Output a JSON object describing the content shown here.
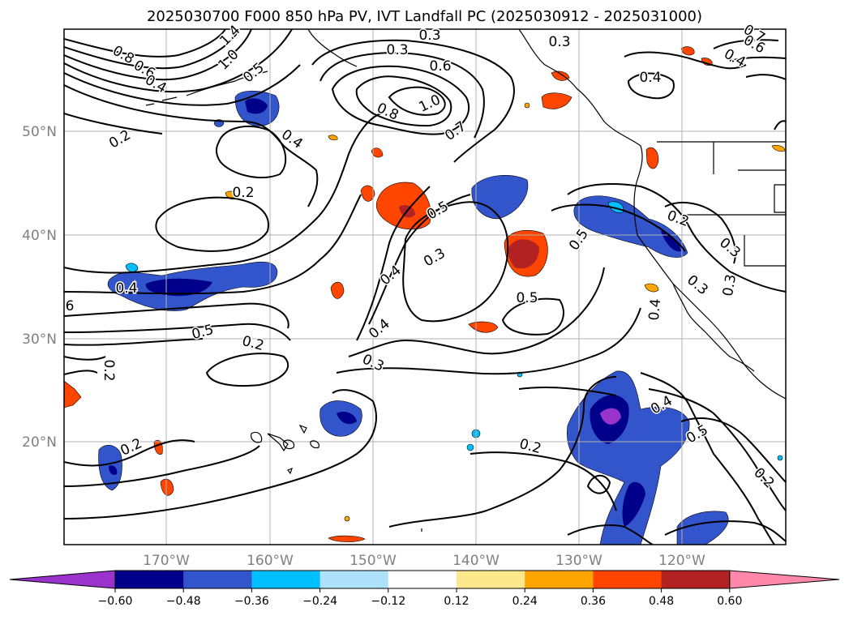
{
  "title": "2025030700 F000 850 hPa PV, IVT Landfall PC (2025030912 - 2025031000)",
  "lat_ticks": [
    "50°N",
    "40°N",
    "30°N",
    "20°N"
  ],
  "lon_ticks": [
    "170°W",
    "160°W",
    "150°W",
    "140°W",
    "130°W",
    "120°W"
  ],
  "colorbar": {
    "tick_labels": [
      "−0.60",
      "−0.48",
      "−0.36",
      "−0.24",
      "−0.12",
      "0.12",
      "0.24",
      "0.36",
      "0.48",
      "0.60"
    ],
    "colors": [
      "#9933cc",
      "#00008b",
      "#3355cc",
      "#00bfff",
      "#aee2fa",
      "#ffffff",
      "#fde98b",
      "#ffa500",
      "#ff4500",
      "#b22222",
      "#ff88aa"
    ]
  },
  "contour_labels": [
    {
      "text": "0.3"
    },
    {
      "text": "0.3"
    },
    {
      "text": "0.3"
    },
    {
      "text": "0.6"
    },
    {
      "text": "0.7"
    },
    {
      "text": "0.6"
    },
    {
      "text": "0.4"
    },
    {
      "text": "1.4"
    },
    {
      "text": "1.0"
    },
    {
      "text": "0.8"
    },
    {
      "text": "0.6"
    },
    {
      "text": "0.4"
    },
    {
      "text": "0.5"
    },
    {
      "text": "0.2"
    },
    {
      "text": "0.4"
    },
    {
      "text": "0.8"
    },
    {
      "text": "1.0"
    },
    {
      "text": "0.7"
    },
    {
      "text": "0.4"
    },
    {
      "text": "0.2"
    },
    {
      "text": "0.5"
    },
    {
      "text": "0.3"
    },
    {
      "text": "0.4"
    },
    {
      "text": "0.5"
    },
    {
      "text": "0.2"
    },
    {
      "text": "0.3"
    },
    {
      "text": "0.3"
    },
    {
      "text": "0.5"
    },
    {
      "text": "0.4"
    },
    {
      "text": "0.3"
    },
    {
      "text": "0.4"
    },
    {
      "text": "6"
    },
    {
      "text": "0.5"
    },
    {
      "text": "0.2"
    },
    {
      "text": "0.3"
    },
    {
      "text": "0.2"
    },
    {
      "text": "0.4"
    },
    {
      "text": "0.2"
    },
    {
      "text": "0.4"
    },
    {
      "text": "0.5"
    },
    {
      "text": "0.2"
    },
    {
      "text": "0.2"
    }
  ]
}
